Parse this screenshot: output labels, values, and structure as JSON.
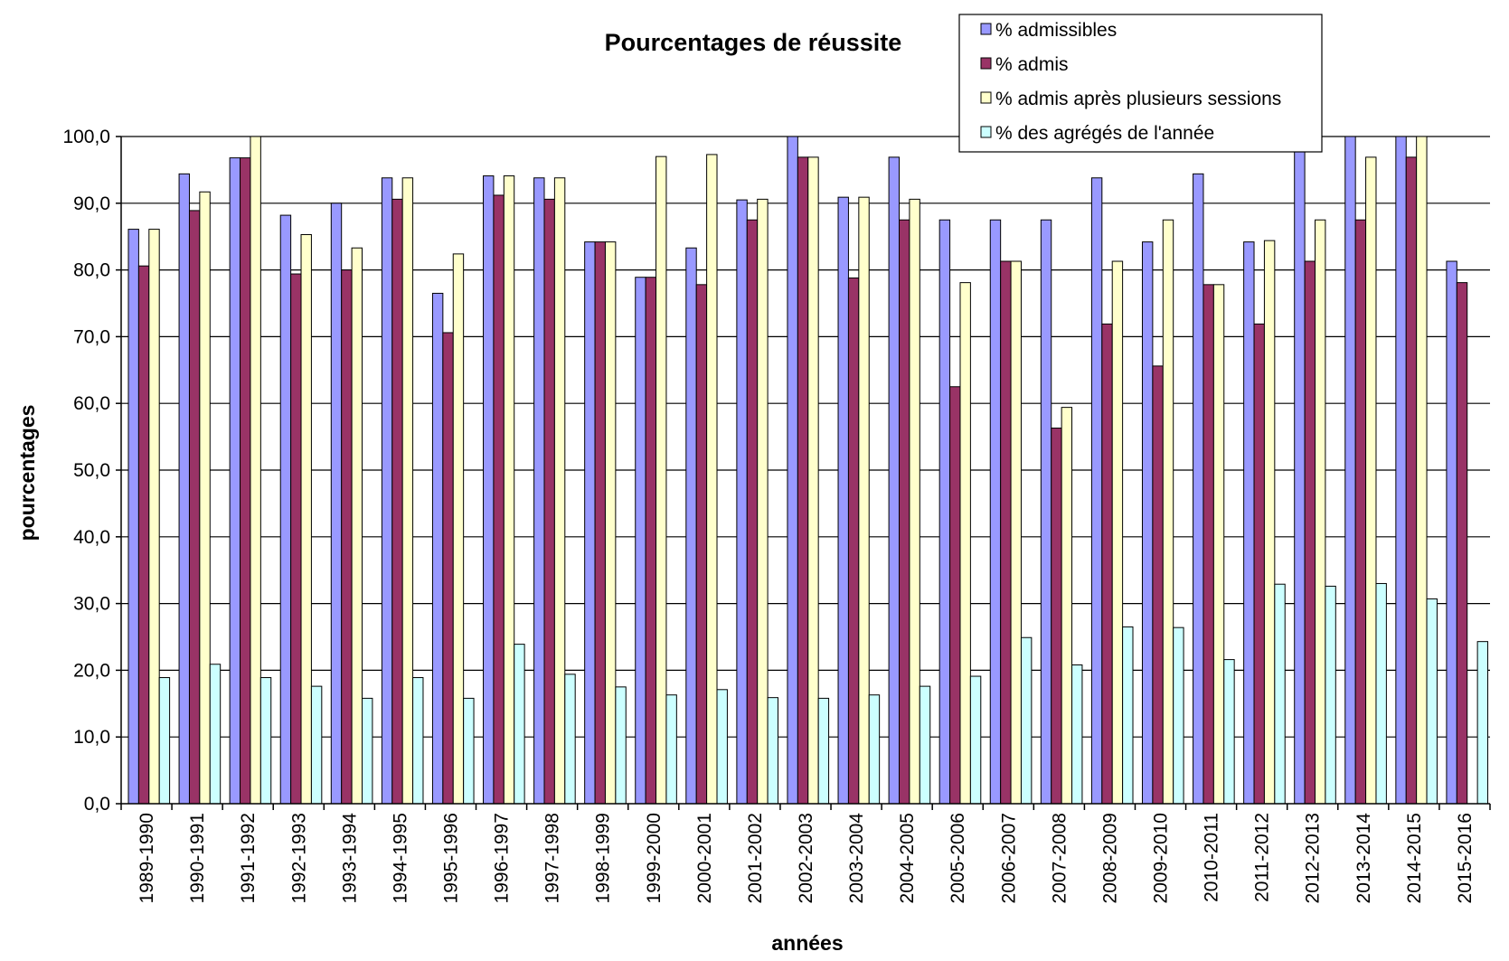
{
  "chart_data": {
    "type": "bar",
    "title": "Pourcentages de réussite",
    "xlabel": "années",
    "ylabel": "pourcentages",
    "ylim": [
      0,
      100
    ],
    "yticks": [
      "0,0",
      "10,0",
      "20,0",
      "30,0",
      "40,0",
      "50,0",
      "60,0",
      "70,0",
      "80,0",
      "90,0",
      "100,0"
    ],
    "grid": "horizontal",
    "legend_position": "top-right",
    "categories": [
      "1989-1990",
      "1990-1991",
      "1991-1992",
      "1992-1993",
      "1993-1994",
      "1994-1995",
      "1995-1996",
      "1996-1997",
      "1997-1998",
      "1998-1999",
      "1999-2000",
      "2000-2001",
      "2001-2002",
      "2002-2003",
      "2003-2004",
      "2004-2005",
      "2005-2006",
      "2006-2007",
      "2007-2008",
      "2008-2009",
      "2009-2010",
      "2010-2011",
      "2011-2012",
      "2012-2013",
      "2013-2014",
      "2014-2015",
      "2015-2016"
    ],
    "series": [
      {
        "name": "% admissibles",
        "color": "#9999ff",
        "values": [
          86.1,
          94.4,
          96.8,
          88.2,
          90.0,
          93.8,
          76.5,
          94.1,
          93.8,
          84.2,
          78.9,
          83.3,
          90.5,
          100.0,
          90.9,
          96.9,
          87.5,
          87.5,
          87.5,
          93.8,
          84.2,
          94.4,
          84.2,
          98.0,
          100.0,
          100.0,
          81.3
        ]
      },
      {
        "name": "% admis",
        "color": "#993366",
        "values": [
          80.6,
          88.9,
          96.8,
          79.4,
          80.0,
          90.6,
          70.6,
          91.2,
          90.6,
          84.2,
          78.9,
          77.8,
          87.5,
          96.9,
          78.8,
          87.5,
          62.5,
          81.3,
          56.3,
          71.9,
          65.6,
          77.8,
          71.9,
          81.3,
          87.5,
          96.9,
          78.1
        ]
      },
      {
        "name": "% admis après plusieurs sessions",
        "color": "#ffffcc",
        "values": [
          86.1,
          91.7,
          100.0,
          85.3,
          83.3,
          93.8,
          82.4,
          94.1,
          93.8,
          84.2,
          97.0,
          97.3,
          90.6,
          96.9,
          90.9,
          90.6,
          78.1,
          81.3,
          59.4,
          81.3,
          87.5,
          77.8,
          84.4,
          87.5,
          96.9,
          100.0,
          null
        ]
      },
      {
        "name": "% des agrégés de l'année",
        "color": "#ccffff",
        "values": [
          18.9,
          20.9,
          18.9,
          17.6,
          15.8,
          18.9,
          15.8,
          23.9,
          19.4,
          17.5,
          16.3,
          17.1,
          15.9,
          15.8,
          16.3,
          17.6,
          19.1,
          24.9,
          20.8,
          26.5,
          26.4,
          21.6,
          32.9,
          32.6,
          33.0,
          30.7,
          24.3
        ]
      }
    ]
  }
}
